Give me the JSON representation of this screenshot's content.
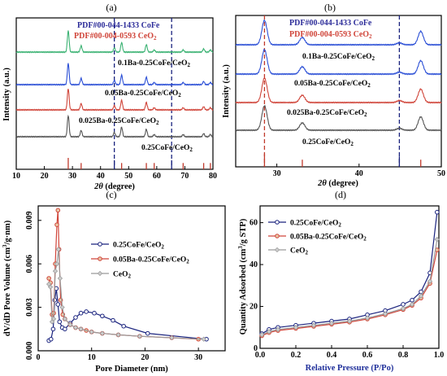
{
  "colors": {
    "green": "#3bb273",
    "blue": "#2b4fd6",
    "dark_blue": "#1a237e",
    "red": "#d0453a",
    "gray": "#555555",
    "light_gray": "#9a9a9a",
    "ref_red": "#c0392b",
    "pdf_blue_text": "#2e2e9a",
    "axis_blue_text": "#1f2f9a"
  },
  "chart_data": [
    {
      "id": "a",
      "panel_label": "(a)",
      "type": "line",
      "xlabel": "2θ (degree)",
      "ylabel": "Intensity (a.u.)",
      "xlim": [
        10,
        80
      ],
      "xticks": [
        "10",
        "20",
        "30",
        "40",
        "50",
        "60",
        "70",
        "80"
      ],
      "legend": [
        "PDF#00-044-1433 CoFe",
        "PDF#00-004-0593 CeO2"
      ],
      "series": [
        {
          "name": "0.1Ba-0.25CoFe/CeO2",
          "color": "#3bb273",
          "peaks": [
            [
              28.5,
              1.0
            ],
            [
              33.1,
              0.3
            ],
            [
              44.9,
              0.2
            ],
            [
              47.5,
              0.45
            ],
            [
              56.3,
              0.35
            ],
            [
              59.1,
              0.1
            ],
            [
              69.4,
              0.1
            ],
            [
              76.7,
              0.15
            ],
            [
              79.1,
              0.1
            ]
          ]
        },
        {
          "name": "0.05Ba-0.25CoFe/CeO2",
          "color": "#2b4fd6",
          "peaks": [
            [
              28.5,
              1.0
            ],
            [
              33.1,
              0.3
            ],
            [
              44.9,
              0.2
            ],
            [
              47.5,
              0.45
            ],
            [
              56.3,
              0.35
            ],
            [
              59.1,
              0.1
            ],
            [
              69.4,
              0.1
            ],
            [
              76.7,
              0.15
            ],
            [
              79.1,
              0.1
            ]
          ]
        },
        {
          "name": "0.025Ba-0.25CoFe/CeO2",
          "color": "#d0453a",
          "peaks": [
            [
              28.5,
              1.0
            ],
            [
              33.1,
              0.3
            ],
            [
              44.9,
              0.2
            ],
            [
              47.5,
              0.45
            ],
            [
              56.3,
              0.35
            ],
            [
              59.1,
              0.1
            ],
            [
              69.4,
              0.1
            ],
            [
              76.7,
              0.15
            ],
            [
              79.1,
              0.1
            ]
          ]
        },
        {
          "name": "0.25CoFe/CeO2",
          "color": "#555555",
          "peaks": [
            [
              28.5,
              1.0
            ],
            [
              33.1,
              0.3
            ],
            [
              44.9,
              0.2
            ],
            [
              47.5,
              0.45
            ],
            [
              56.3,
              0.35
            ],
            [
              59.1,
              0.1
            ],
            [
              69.4,
              0.1
            ],
            [
              76.7,
              0.15
            ],
            [
              79.1,
              0.1
            ]
          ]
        }
      ],
      "reference_lines": {
        "CeO2": [
          28.5,
          33.1,
          47.5,
          56.3,
          59.1,
          69.4,
          76.7,
          79.1
        ],
        "CoFe": [
          44.9,
          65.3
        ]
      }
    },
    {
      "id": "b",
      "panel_label": "(b)",
      "type": "line",
      "xlabel": "2θ (degree)",
      "ylabel": "Intensity (a.u.)",
      "xlim": [
        25,
        50
      ],
      "xticks": [
        "30",
        "40",
        "50"
      ],
      "legend": [
        "PDF#00-044-1433 CoFe",
        "PDF#00-004-0593 CeO2"
      ],
      "series": [
        {
          "name": "0.1Ba-0.25CoFe/CeO2",
          "color": "#2b4fd6",
          "peaks": [
            [
              28.5,
              1.0
            ],
            [
              33.1,
              0.3
            ],
            [
              44.9,
              0.08
            ],
            [
              47.5,
              0.55
            ]
          ]
        },
        {
          "name": "0.05Ba-0.25CoFe/CeO2",
          "color": "#2b4fd6",
          "peaks": [
            [
              28.5,
              1.0
            ],
            [
              33.1,
              0.3
            ],
            [
              44.9,
              0.08
            ],
            [
              47.5,
              0.55
            ]
          ]
        },
        {
          "name": "0.025Ba-0.25CoFe/CeO2",
          "color": "#d0453a",
          "peaks": [
            [
              28.5,
              1.0
            ],
            [
              33.1,
              0.3
            ],
            [
              44.9,
              0.08
            ],
            [
              47.5,
              0.55
            ]
          ]
        },
        {
          "name": "0.25CoFe/CeO2",
          "color": "#555555",
          "peaks": [
            [
              28.5,
              1.0
            ],
            [
              33.1,
              0.3
            ],
            [
              44.9,
              0.08
            ],
            [
              47.5,
              0.55
            ]
          ]
        }
      ],
      "reference_lines": {
        "CeO2": [
          28.5,
          33.1,
          47.5
        ],
        "CoFe": [
          44.9
        ]
      }
    },
    {
      "id": "c",
      "panel_label": "(c)",
      "type": "line",
      "xlabel": "Pore Diameter (nm)",
      "ylabel": "dV/dD Pore Volume (cm3/g·nm)",
      "xlim": [
        0,
        35
      ],
      "ylim": [
        0,
        0.01
      ],
      "xticks": [
        "0",
        "10",
        "20",
        "30"
      ],
      "yticks": [
        "0.000",
        "0.003",
        "0.006",
        "0.009"
      ],
      "series": [
        {
          "name": "0.25CoFe/CeO2",
          "color": "#1a237e",
          "points": [
            [
              2.0,
              0.0007
            ],
            [
              2.4,
              0.0008
            ],
            [
              2.8,
              0.0015
            ],
            [
              3.1,
              0.0035
            ],
            [
              3.4,
              0.0043
            ],
            [
              3.7,
              0.0032
            ],
            [
              4.0,
              0.002
            ],
            [
              4.5,
              0.0016
            ],
            [
              5.0,
              0.0015
            ],
            [
              6.0,
              0.0019
            ],
            [
              7.0,
              0.0023
            ],
            [
              8.0,
              0.0026
            ],
            [
              9.0,
              0.0027
            ],
            [
              10.5,
              0.0026
            ],
            [
              12.0,
              0.0024
            ],
            [
              14.0,
              0.0021
            ],
            [
              16.0,
              0.0017
            ],
            [
              20.5,
              0.0012
            ],
            [
              31.5,
              0.0008
            ]
          ]
        },
        {
          "name": "0.05Ba-0.25CoFe/CeO2",
          "color": "#d0453a",
          "points": [
            [
              2.0,
              0.005
            ],
            [
              2.3,
              0.0047
            ],
            [
              2.6,
              0.0025
            ],
            [
              2.9,
              0.0026
            ],
            [
              3.2,
              0.006
            ],
            [
              3.5,
              0.0087
            ],
            [
              3.7,
              0.0097
            ],
            [
              3.9,
              0.007
            ],
            [
              4.2,
              0.0035
            ],
            [
              4.6,
              0.0025
            ],
            [
              5.0,
              0.0022
            ],
            [
              6.0,
              0.0018
            ],
            [
              7.0,
              0.0016
            ],
            [
              8.0,
              0.0015
            ],
            [
              9.0,
              0.0014
            ],
            [
              10.0,
              0.0013
            ],
            [
              12.0,
              0.0012
            ],
            [
              15.0,
              0.0011
            ],
            [
              19.0,
              0.001
            ],
            [
              25.0,
              0.0009
            ],
            [
              30.0,
              0.0008
            ]
          ]
        },
        {
          "name": "CeO2",
          "color": "#9a9a9a",
          "points": [
            [
              2.0,
              0.0046
            ],
            [
              2.3,
              0.0044
            ],
            [
              2.6,
              0.002
            ],
            [
              2.9,
              0.0022
            ],
            [
              3.2,
              0.0055
            ],
            [
              3.5,
              0.006
            ],
            [
              3.8,
              0.007
            ],
            [
              4.1,
              0.005
            ],
            [
              4.5,
              0.003
            ],
            [
              5.0,
              0.0022
            ],
            [
              6.0,
              0.0018
            ],
            [
              7.0,
              0.0016
            ],
            [
              8.0,
              0.0015
            ],
            [
              10.0,
              0.0013
            ],
            [
              12.0,
              0.0012
            ],
            [
              15.0,
              0.0011
            ],
            [
              19.0,
              0.001
            ],
            [
              25.0,
              0.0009
            ],
            [
              31.0,
              0.0008
            ]
          ]
        }
      ]
    },
    {
      "id": "d",
      "panel_label": "(d)",
      "type": "line",
      "xlabel": "Relative Pressure (P/Po)",
      "ylabel": "Quantity Adsorbed (cm3/g STP)",
      "xlim": [
        0.0,
        1.0
      ],
      "ylim": [
        0,
        68
      ],
      "xticks": [
        "0.0",
        "0.2",
        "0.4",
        "0.6",
        "0.8",
        "1.0"
      ],
      "yticks": [
        "0",
        "20",
        "40",
        "60"
      ],
      "series": [
        {
          "name": "0.25CoFe/CeO2",
          "color": "#1a237e",
          "points": [
            [
              0.01,
              7
            ],
            [
              0.05,
              9
            ],
            [
              0.1,
              10
            ],
            [
              0.2,
              11
            ],
            [
              0.3,
              12
            ],
            [
              0.4,
              13
            ],
            [
              0.5,
              14
            ],
            [
              0.6,
              16
            ],
            [
              0.7,
              18
            ],
            [
              0.8,
              21
            ],
            [
              0.85,
              23
            ],
            [
              0.9,
              27
            ],
            [
              0.95,
              36
            ],
            [
              0.99,
              65
            ]
          ]
        },
        {
          "name": "0.05Ba-0.25CoFe/CeO2",
          "color": "#d0453a",
          "points": [
            [
              0.01,
              6
            ],
            [
              0.05,
              7.5
            ],
            [
              0.1,
              8.5
            ],
            [
              0.2,
              9.5
            ],
            [
              0.3,
              10.5
            ],
            [
              0.4,
              11.5
            ],
            [
              0.5,
              12.5
            ],
            [
              0.6,
              14
            ],
            [
              0.7,
              16
            ],
            [
              0.8,
              18.5
            ],
            [
              0.85,
              20.5
            ],
            [
              0.9,
              24
            ],
            [
              0.95,
              31
            ],
            [
              0.99,
              47
            ]
          ]
        },
        {
          "name": "CeO2",
          "color": "#9a9a9a",
          "points": [
            [
              0.01,
              6.5
            ],
            [
              0.05,
              8
            ],
            [
              0.1,
              9
            ],
            [
              0.2,
              10
            ],
            [
              0.3,
              11
            ],
            [
              0.4,
              12
            ],
            [
              0.5,
              13
            ],
            [
              0.6,
              14.5
            ],
            [
              0.7,
              16.5
            ],
            [
              0.8,
              19
            ],
            [
              0.85,
              21
            ],
            [
              0.9,
              25
            ],
            [
              0.95,
              32
            ],
            [
              0.99,
              52
            ]
          ]
        }
      ]
    }
  ]
}
